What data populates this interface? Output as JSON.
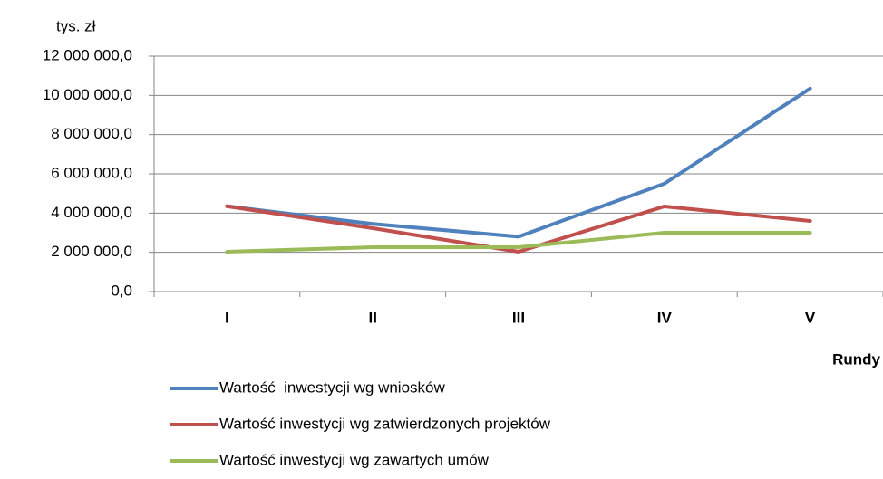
{
  "chart_data": {
    "type": "line",
    "y_label": "tys. zł",
    "x_label": "Rundy",
    "categories": [
      "I",
      "II",
      "III",
      "IV",
      "V"
    ],
    "series": [
      {
        "name": "Wartość  inwestycji wg wniosków",
        "color": "#4f81bd",
        "values": [
          4350000,
          3450000,
          2800000,
          5500000,
          10350000
        ]
      },
      {
        "name": "Wartość inwestycji wg zatwierdzonych projektów",
        "color": "#c0504d",
        "values": [
          4350000,
          3230000,
          2030000,
          4340000,
          3600000
        ]
      },
      {
        "name": "Wartość inwestycji wg zawartych umów",
        "color": "#9bbb59",
        "values": [
          2030000,
          2260000,
          2260000,
          3000000,
          3000000
        ]
      }
    ],
    "ylim": [
      0,
      12000000
    ],
    "yticks": [
      {
        "value": 0,
        "label": "0,0"
      },
      {
        "value": 2000000,
        "label": "2 000 000,0"
      },
      {
        "value": 4000000,
        "label": "4 000 000,0"
      },
      {
        "value": 6000000,
        "label": "6 000 000,0"
      },
      {
        "value": 8000000,
        "label": "8 000 000,0"
      },
      {
        "value": 10000000,
        "label": "10 000 000,0"
      },
      {
        "value": 12000000,
        "label": "12 000 000,0"
      }
    ],
    "grid": true
  }
}
